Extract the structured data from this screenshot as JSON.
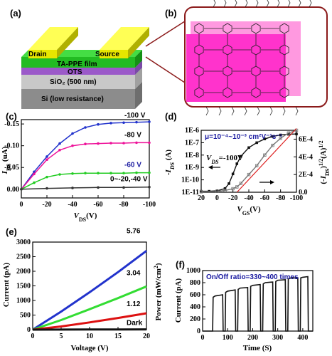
{
  "panels": {
    "a": {
      "letter": "(a)",
      "layers": {
        "drain": "Drain",
        "source": "Source",
        "film": "TA-PPE film",
        "ots": "OTS",
        "sio2": "SiO₂ (500 nm)",
        "si": "Si (low resistance)"
      }
    },
    "b": {
      "letter": "(b)"
    },
    "c": {
      "letter": "(c)"
    },
    "d": {
      "letter": "(d)",
      "mobility": "μ=10⁻⁴~10⁻³ cm²V⁻¹s⁻¹",
      "vds_label": "V_DS=-100V"
    },
    "e": {
      "letter": "(e)"
    },
    "f": {
      "letter": "(f)",
      "ratio_label": "On/Off ratio=330~400 times"
    }
  },
  "colors": {
    "film": "#22bb22",
    "electrode": "#e6e600",
    "ots": "#9b59c9",
    "sio2": "#c8c8c8",
    "si": "#8c8c8c",
    "molecule": "#ff33cc",
    "frame": "#8b1a1a"
  },
  "chart_data": [
    {
      "panel": "c",
      "type": "line",
      "xlabel": "V_DS(V)",
      "ylabel": "I_DS (uA)",
      "xlim": [
        0,
        -100
      ],
      "ylim": [
        0.02,
        -0.16
      ],
      "xticks": [
        "0",
        "-20",
        "-40",
        "-60",
        "-80",
        "-100"
      ],
      "yticks": [
        "0.00",
        "-0.05",
        "-0.10",
        "-0.15"
      ],
      "series": [
        {
          "name": "-100 V",
          "color": "#2233cc",
          "x": [
            0,
            -10,
            -20,
            -30,
            -40,
            -50,
            -60,
            -70,
            -80,
            -90,
            -100
          ],
          "y": [
            0,
            -0.04,
            -0.075,
            -0.105,
            -0.128,
            -0.142,
            -0.149,
            -0.152,
            -0.153,
            -0.154,
            -0.155
          ]
        },
        {
          "name": "-80 V",
          "color": "#ee1199",
          "x": [
            0,
            -10,
            -20,
            -30,
            -40,
            -50,
            -60,
            -70,
            -80,
            -90,
            -100
          ],
          "y": [
            0,
            -0.035,
            -0.068,
            -0.09,
            -0.1,
            -0.104,
            -0.105,
            -0.106,
            -0.106,
            -0.107,
            -0.107
          ]
        },
        {
          "name": "-60 V",
          "color": "#22cc22",
          "x": [
            0,
            -10,
            -20,
            -30,
            -40,
            -50,
            -60,
            -70,
            -80,
            -90,
            -100
          ],
          "y": [
            0,
            -0.015,
            -0.028,
            -0.034,
            -0.036,
            -0.037,
            -0.037,
            -0.037,
            -0.037,
            -0.038,
            -0.038
          ]
        },
        {
          "name": "0~-20,-40 V",
          "color": "#333333",
          "x": [
            0,
            -20,
            -40,
            -60,
            -80,
            -100
          ],
          "y": [
            0,
            -0.002,
            -0.003,
            -0.004,
            -0.004,
            -0.005
          ]
        }
      ]
    },
    {
      "panel": "d",
      "type": "line",
      "xlabel": "V_GS(V)",
      "ylabel": "-I_DS (A)",
      "ylabel_right": "(-I_DS)^1/2 (A)^1/2",
      "xlim": [
        20,
        -100
      ],
      "xticks": [
        "20",
        "0",
        "-20",
        "-40",
        "-60",
        "-80",
        "-100"
      ],
      "ylim_log": [
        1e-11,
        1e-06
      ],
      "yticks_left": [
        "1E-11",
        "1E-10",
        "1E-9",
        "1E-8",
        "1E-7",
        "1E-6"
      ],
      "ylim_right": [
        0,
        0.0007
      ],
      "yticks_right": [
        "0.0",
        "2E-4",
        "4E-4",
        "6E-4"
      ],
      "series": [
        {
          "name": "-I_DS",
          "axis": "left",
          "color": "#111111",
          "x": [
            20,
            10,
            0,
            -10,
            -15,
            -20,
            -25,
            -30,
            -40,
            -50,
            -60,
            -70,
            -80,
            -90,
            -100
          ],
          "y": [
            1.2e-11,
            1.2e-11,
            1.3e-11,
            2e-11,
            5e-11,
            3e-10,
            2e-09,
            8e-09,
            4e-08,
            1e-07,
            2e-07,
            3.2e-07,
            4.2e-07,
            4.8e-07,
            5e-07
          ]
        },
        {
          "name": "sqrt(-I_DS)",
          "axis": "right",
          "color": "#777777",
          "x": [
            20,
            0,
            -10,
            -20,
            -25,
            -30,
            -40,
            -50,
            -60,
            -70,
            -80,
            -90,
            -100
          ],
          "y": [
            5e-06,
            1e-05,
            2e-05,
            4e-05,
            6e-05,
            0.0001,
            0.0002,
            0.0003,
            0.00042,
            0.00053,
            0.00061,
            0.00067,
            0.0007
          ]
        },
        {
          "name": "fit",
          "axis": "right",
          "color": "#dd2222",
          "x": [
            -25,
            -100
          ],
          "y": [
            0,
            0.00072
          ]
        }
      ]
    },
    {
      "panel": "e",
      "type": "line",
      "xlabel": "Voltage (V)",
      "ylabel": "Current (pA)",
      "ylabel_right": "Power (mW/cm²)",
      "xlim": [
        0,
        20
      ],
      "ylim": [
        0,
        3000
      ],
      "xticks": [
        "0",
        "5",
        "10",
        "15",
        "20"
      ],
      "yticks": [
        "0",
        "500",
        "1000",
        "1500",
        "2000",
        "2500",
        "3000"
      ],
      "series": [
        {
          "name": "5.76",
          "color": "#2233cc",
          "x": [
            0,
            5,
            10,
            15,
            20
          ],
          "y": [
            0,
            620,
            1280,
            1970,
            2700
          ]
        },
        {
          "name": "3.04",
          "color": "#33dd33",
          "x": [
            0,
            5,
            10,
            15,
            20
          ],
          "y": [
            0,
            330,
            700,
            1080,
            1480
          ]
        },
        {
          "name": "1.12",
          "color": "#dd1111",
          "x": [
            0,
            5,
            10,
            15,
            20
          ],
          "y": [
            0,
            110,
            250,
            400,
            560
          ]
        },
        {
          "name": "Dark",
          "color": "#111111",
          "x": [
            0,
            5,
            10,
            15,
            20
          ],
          "y": [
            0,
            3,
            5,
            8,
            10
          ]
        }
      ]
    },
    {
      "panel": "f",
      "type": "line",
      "xlabel": "Time (S)",
      "ylabel": "Current (pA)",
      "xlim": [
        0,
        440
      ],
      "ylim": [
        0,
        1000
      ],
      "xticks": [
        "0",
        "100",
        "200",
        "300",
        "400"
      ],
      "yticks": [
        "0",
        "200",
        "400",
        "600",
        "800",
        "1000"
      ],
      "series": [
        {
          "name": "photocurrent",
          "color": "#111111",
          "x": [
            0,
            40,
            42,
            50,
            80,
            82,
            90,
            92,
            100,
            130,
            132,
            140,
            142,
            150,
            180,
            182,
            190,
            192,
            200,
            230,
            232,
            240,
            242,
            250,
            280,
            282,
            290,
            292,
            300,
            330,
            332,
            340,
            342,
            350,
            380,
            382,
            390,
            392,
            400,
            420,
            422,
            440
          ],
          "y": [
            0,
            0,
            560,
            580,
            600,
            0,
            0,
            640,
            660,
            680,
            0,
            0,
            690,
            710,
            720,
            0,
            0,
            740,
            755,
            770,
            0,
            0,
            780,
            800,
            810,
            0,
            0,
            820,
            840,
            850,
            0,
            0,
            860,
            875,
            880,
            0,
            0,
            880,
            890,
            900,
            0,
            0
          ]
        }
      ]
    }
  ]
}
